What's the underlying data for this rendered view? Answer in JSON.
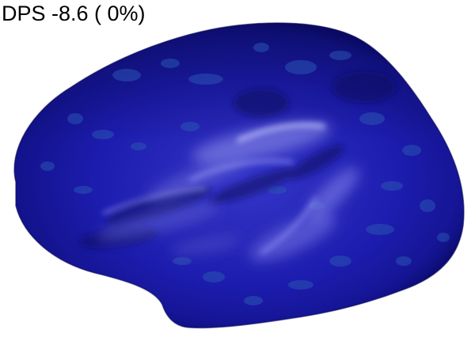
{
  "viewer": {
    "overlay_label": "DPS -8.6 ( 0%)"
  },
  "surface": {
    "name": "inflated-cortical-surface",
    "base_color": "#1a1aa6",
    "dark_color": "#0d0d70",
    "highlight_color": "#8f8fe8",
    "patch_color": "#2a52b0"
  }
}
